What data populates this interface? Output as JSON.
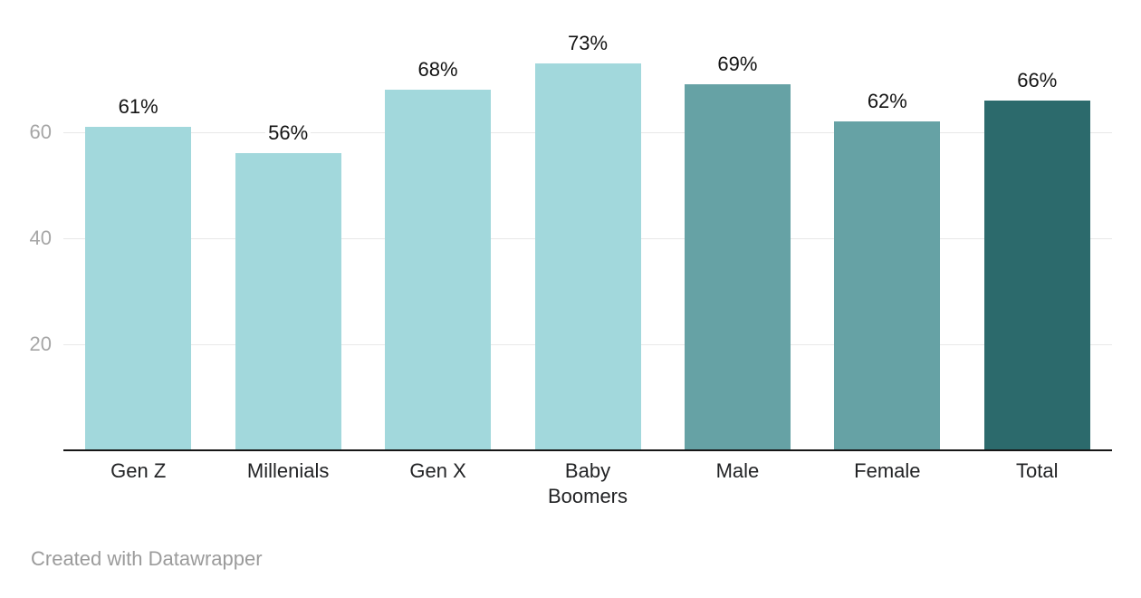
{
  "footer": {
    "credit": "Created with Datawrapper"
  },
  "chart_data": {
    "type": "bar",
    "title": "",
    "xlabel": "",
    "ylabel": "",
    "unit": "%",
    "categories": [
      "Gen Z",
      "Millenials",
      "Gen X",
      "Baby Boomers",
      "Male",
      "Female",
      "Total"
    ],
    "values": [
      61,
      56,
      68,
      73,
      69,
      62,
      66
    ],
    "value_labels": [
      "61%",
      "56%",
      "68%",
      "73%",
      "69%",
      "62%",
      "66%"
    ],
    "bar_colors": [
      "#a2d8dc",
      "#a2d8dc",
      "#a2d8dc",
      "#a2d8dc",
      "#66a2a5",
      "#66a2a5",
      "#2c6a6c"
    ],
    "yticks": [
      20,
      40,
      60
    ],
    "ylim": [
      0,
      77
    ],
    "grid": true,
    "legend": false
  },
  "colors": {
    "light_teal": "#a2d8dc",
    "medium_teal": "#66a2a5",
    "dark_teal": "#2c6a6c",
    "gridline": "#e8e8e8",
    "axis_line": "#161616",
    "tick_label": "#a6a6a6",
    "value_label": "#141414",
    "category_label": "#222325",
    "credit_text": "#9b9b9b"
  }
}
